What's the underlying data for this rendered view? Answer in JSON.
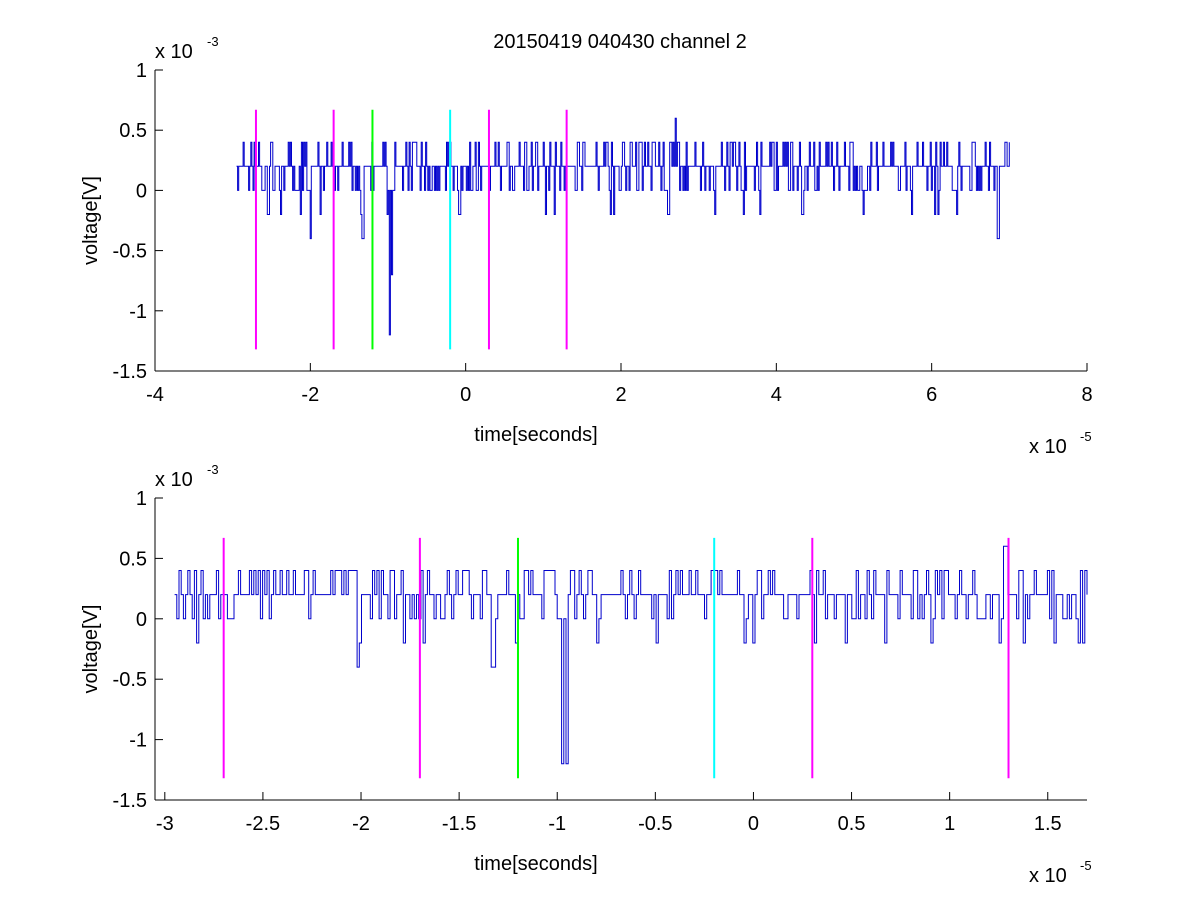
{
  "chart_data": [
    {
      "type": "line",
      "title": "20150419 040430 channel 2",
      "xlabel": "time[seconds]",
      "ylabel": "voltage[V]",
      "x_multiplier": "x 10",
      "x_exponent": "-5",
      "y_multiplier": "x 10",
      "y_exponent": "-3",
      "xlim": [
        -4,
        8
      ],
      "ylim": [
        -1.5,
        1
      ],
      "xticks": [
        -4,
        -2,
        0,
        2,
        4,
        6,
        8
      ],
      "xtick_labels": [
        "-4",
        "-2",
        "0",
        "2",
        "4",
        "6",
        "8"
      ],
      "yticks": [
        -1.5,
        -1,
        -0.5,
        0,
        0.5,
        1
      ],
      "ytick_labels": [
        "-1.5",
        "-1",
        "-0.5",
        "0",
        "0.5",
        "1"
      ],
      "grid": false,
      "signal": {
        "color": "#0000cc",
        "x_range": [
          -2.95,
          7.0
        ],
        "baseline": 0.2,
        "levels": [
          0,
          0.2,
          0.4
        ],
        "spikes": [
          {
            "x": -2.55,
            "y": -0.2
          },
          {
            "x": -2.0,
            "y": -0.4
          },
          {
            "x": -1.33,
            "y": -0.4
          },
          {
            "x": -0.98,
            "y": -1.2
          },
          {
            "x": -0.96,
            "y": -0.7
          },
          {
            "x": 2.7,
            "y": 0.6
          },
          {
            "x": 6.85,
            "y": -0.4
          }
        ]
      },
      "markers": [
        {
          "x": -2.7,
          "color": "#ff00ff"
        },
        {
          "x": -1.7,
          "color": "#ff00ff"
        },
        {
          "x": -1.2,
          "color": "#00ff00"
        },
        {
          "x": -0.2,
          "color": "#00ffff"
        },
        {
          "x": 0.3,
          "color": "#ff00ff"
        },
        {
          "x": 1.3,
          "color": "#ff00ff"
        }
      ],
      "marker_range": [
        -1.32,
        0.67
      ]
    },
    {
      "type": "line",
      "title": "",
      "xlabel": "time[seconds]",
      "ylabel": "voltage[V]",
      "x_multiplier": "x 10",
      "x_exponent": "-5",
      "y_multiplier": "x 10",
      "y_exponent": "-3",
      "xlim": [
        -3.05,
        1.7
      ],
      "ylim": [
        -1.5,
        1
      ],
      "xticks": [
        -3,
        -2.5,
        -2,
        -1.5,
        -1,
        -0.5,
        0,
        0.5,
        1,
        1.5
      ],
      "xtick_labels": [
        "-3",
        "-2.5",
        "-2",
        "-1.5",
        "-1",
        "-0.5",
        "0",
        "0.5",
        "1",
        "1.5"
      ],
      "yticks": [
        -1.5,
        -1,
        -0.5,
        0,
        0.5,
        1
      ],
      "ytick_labels": [
        "-1.5",
        "-1",
        "-0.5",
        "0",
        "0.5",
        "1"
      ],
      "grid": false,
      "signal": {
        "color": "#0000cc",
        "x_range": [
          -2.95,
          1.7
        ],
        "baseline": 0.2,
        "levels": [
          0,
          0.2,
          0.4
        ],
        "spikes": [
          {
            "x": -2.84,
            "y": -0.2
          },
          {
            "x": -2.02,
            "y": -0.4
          },
          {
            "x": -1.33,
            "y": -0.4
          },
          {
            "x": -0.98,
            "y": -1.2
          },
          {
            "x": -0.96,
            "y": -1.2
          },
          {
            "x": -0.5,
            "y": -0.2
          },
          {
            "x": 0.31,
            "y": -0.2
          },
          {
            "x": 1.28,
            "y": 0.6
          }
        ]
      },
      "markers": [
        {
          "x": -2.7,
          "color": "#ff00ff"
        },
        {
          "x": -1.7,
          "color": "#ff00ff"
        },
        {
          "x": -1.2,
          "color": "#00ff00"
        },
        {
          "x": -0.2,
          "color": "#00ffff"
        },
        {
          "x": 0.3,
          "color": "#ff00ff"
        },
        {
          "x": 1.3,
          "color": "#ff00ff"
        }
      ],
      "marker_range": [
        -1.32,
        0.67
      ]
    }
  ]
}
